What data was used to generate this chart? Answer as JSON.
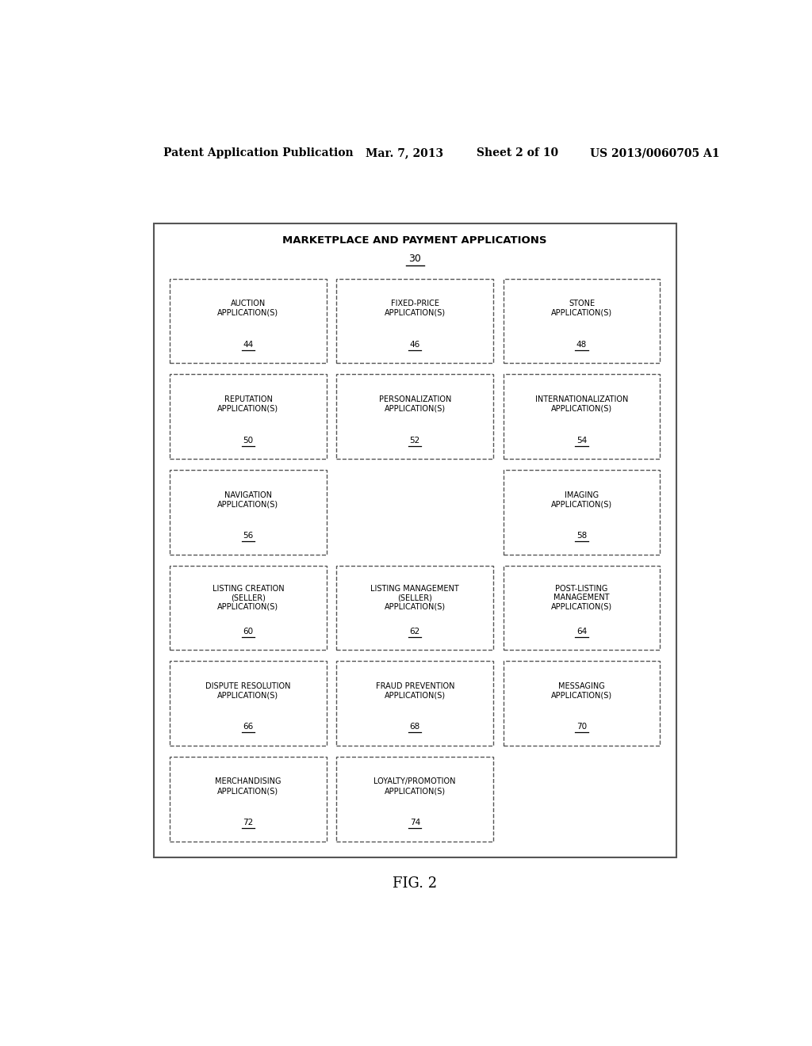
{
  "header_text": "Patent Application Publication",
  "header_date": "Mar. 7, 2013",
  "header_sheet": "Sheet 2 of 10",
  "header_patent": "US 2013/0060705 A1",
  "fig_label": "FIG. 2",
  "outer_box_title": "MARKETPLACE AND PAYMENT APPLICATIONS",
  "outer_box_number": "30",
  "background_color": "#ffffff",
  "box_edge_color": "#555555",
  "outer_box_color": "#ffffff",
  "boxes": [
    {
      "row": 0,
      "col": 0,
      "label": "AUCTION\nAPPLICATION(S)",
      "number": "44"
    },
    {
      "row": 0,
      "col": 1,
      "label": "FIXED-PRICE\nAPPLICATION(S)",
      "number": "46"
    },
    {
      "row": 0,
      "col": 2,
      "label": "STONE\nAPPLICATION(S)",
      "number": "48"
    },
    {
      "row": 1,
      "col": 0,
      "label": "REPUTATION\nAPPLICATION(S)",
      "number": "50"
    },
    {
      "row": 1,
      "col": 1,
      "label": "PERSONALIZATION\nAPPLICATION(S)",
      "number": "52"
    },
    {
      "row": 1,
      "col": 2,
      "label": "INTERNATIONALIZATION\nAPPLICATION(S)",
      "number": "54"
    },
    {
      "row": 2,
      "col": 0,
      "label": "NAVIGATION\nAPPLICATION(S)",
      "number": "56"
    },
    {
      "row": 2,
      "col": 2,
      "label": "IMAGING\nAPPLICATION(S)",
      "number": "58"
    },
    {
      "row": 3,
      "col": 0,
      "label": "LISTING CREATION\n(SELLER)\nAPPLICATION(S)",
      "number": "60"
    },
    {
      "row": 3,
      "col": 1,
      "label": "LISTING MANAGEMENT\n(SELLER)\nAPPLICATION(S)",
      "number": "62"
    },
    {
      "row": 3,
      "col": 2,
      "label": "POST-LISTING\nMANAGEMENT\nAPPLICATION(S)",
      "number": "64"
    },
    {
      "row": 4,
      "col": 0,
      "label": "DISPUTE RESOLUTION\nAPPLICATION(S)",
      "number": "66"
    },
    {
      "row": 4,
      "col": 1,
      "label": "FRAUD PREVENTION\nAPPLICATION(S)",
      "number": "68"
    },
    {
      "row": 4,
      "col": 2,
      "label": "MESSAGING\nAPPLICATION(S)",
      "number": "70"
    },
    {
      "row": 5,
      "col": 0,
      "label": "MERCHANDISING\nAPPLICATION(S)",
      "number": "72"
    },
    {
      "row": 5,
      "col": 1,
      "label": "LOYALTY/PROMOTION\nAPPLICATION(S)",
      "number": "74"
    }
  ]
}
